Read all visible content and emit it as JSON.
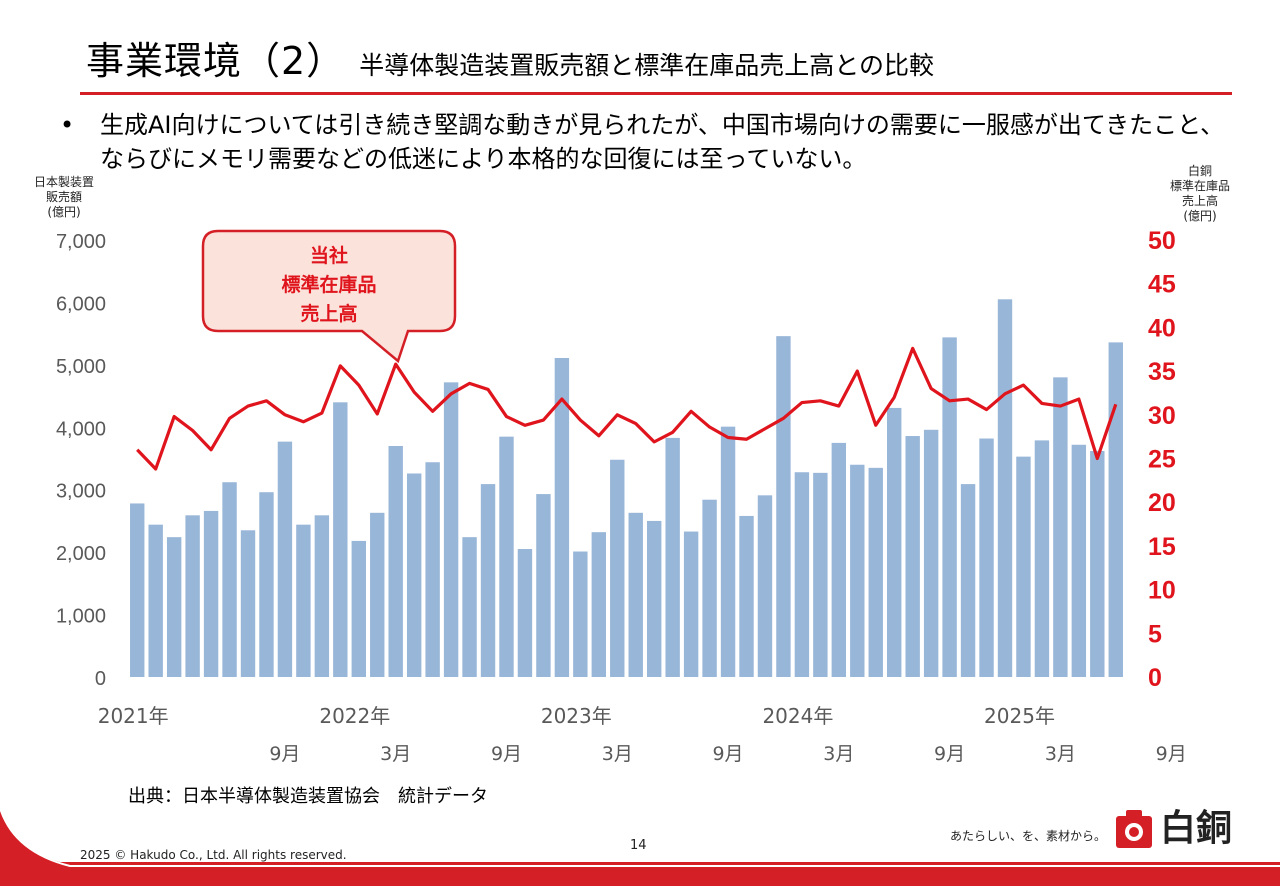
{
  "slide": {
    "title": "事業環境（2）",
    "subtitle": "半導体製造装置販売額と標準在庫品売上高との比較",
    "bullet": "生成AI向けについては引き続き堅調な動きが見られたが、中国市場向けの需要に一服感が出てきたこと、ならびにメモリ需要などの低迷により本格的な回復には至っていない。",
    "bullet_marker": "•",
    "source": "出典：日本半導体製造装置協会　統計データ",
    "copyright": "2025 © Hakudo Co., Ltd. All rights reserved.",
    "page_number": "14",
    "tagline": "あたらしい、を、素材から。",
    "logo_text": "白銅"
  },
  "colors": {
    "accent": "#d51f26",
    "bar": "#98b6d8",
    "line": "#e0141c",
    "callout_fill": "#fbe3dc",
    "callout_border": "#d51f26"
  },
  "chart_data": {
    "type": "bar+line",
    "left_axis_title": [
      "日本製装置",
      "販売額",
      "(億円)"
    ],
    "right_axis_title": [
      "白銅",
      "標準在庫品",
      "売上高",
      "(億円)"
    ],
    "left_ylim": [
      0,
      7000
    ],
    "left_ticks": [
      0,
      1000,
      2000,
      3000,
      4000,
      5000,
      6000,
      7000
    ],
    "left_tick_labels": [
      "0",
      "1,000",
      "2,000",
      "3,000",
      "4,000",
      "5,000",
      "6,000",
      "7,000"
    ],
    "right_ylim": [
      0,
      50
    ],
    "right_ticks": [
      0,
      5,
      10,
      15,
      20,
      25,
      30,
      35,
      40,
      45,
      50
    ],
    "right_tick_labels": [
      "0",
      "5",
      "10",
      "15",
      "20",
      "25",
      "30",
      "35",
      "40",
      "45",
      "50"
    ],
    "x_year_labels": [
      {
        "index": 0,
        "label": "2021年"
      },
      {
        "index": 12,
        "label": "2022年"
      },
      {
        "index": 24,
        "label": "2023年"
      },
      {
        "index": 36,
        "label": "2024年"
      },
      {
        "index": 48,
        "label": "2025年"
      }
    ],
    "x_month_labels": [
      {
        "index": 8,
        "label": "9月"
      },
      {
        "index": 14,
        "label": "3月"
      },
      {
        "index": 20,
        "label": "9月"
      },
      {
        "index": 26,
        "label": "3月"
      },
      {
        "index": 32,
        "label": "9月"
      },
      {
        "index": 38,
        "label": "3月"
      },
      {
        "index": 44,
        "label": "9月"
      },
      {
        "index": 50,
        "label": "3月"
      },
      {
        "index": 56,
        "label": "9月"
      }
    ],
    "series": [
      {
        "name": "日本製装置販売額",
        "axis": "left",
        "kind": "bar",
        "values": [
          2780,
          2440,
          2240,
          2590,
          2660,
          3120,
          2350,
          2960,
          3770,
          2440,
          2590,
          4400,
          2180,
          2630,
          3700,
          3260,
          3440,
          4720,
          2240,
          3090,
          3850,
          2050,
          2930,
          5110,
          2010,
          2320,
          3480,
          2630,
          2500,
          3830,
          2330,
          2840,
          4010,
          2580,
          2910,
          5460,
          3280,
          3270,
          3750,
          3400,
          3350,
          4310,
          3860,
          3960,
          5440,
          3090,
          3820,
          6050,
          3530,
          3790,
          4800,
          3720,
          3620,
          5360
        ]
      },
      {
        "name": "当社 標準在庫品 売上高",
        "axis": "right",
        "kind": "line",
        "values": [
          26.0,
          23.8,
          29.8,
          28.2,
          26.0,
          29.6,
          31.0,
          31.6,
          30.0,
          29.2,
          30.2,
          35.6,
          33.4,
          30.1,
          35.8,
          32.6,
          30.4,
          32.4,
          33.6,
          32.9,
          29.8,
          28.8,
          29.4,
          31.8,
          29.4,
          27.6,
          30.0,
          29.0,
          26.9,
          28.0,
          30.4,
          28.6,
          27.4,
          27.2,
          28.4,
          29.6,
          31.4,
          31.6,
          31.0,
          35.0,
          28.8,
          32.0,
          37.6,
          33.0,
          31.6,
          31.8,
          30.6,
          32.4,
          33.4,
          31.3,
          31.0,
          31.8,
          25.0,
          31.2
        ]
      }
    ],
    "callout": [
      "当社",
      "標準在庫品",
      "売上高"
    ]
  }
}
